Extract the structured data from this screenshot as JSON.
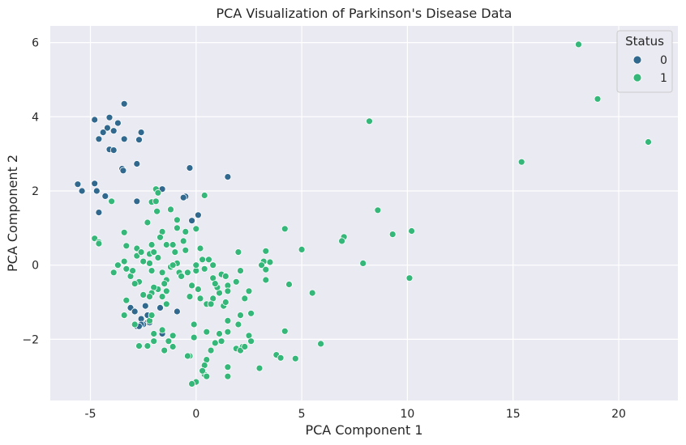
{
  "chart_data": {
    "type": "scatter",
    "title": "PCA Visualization of Parkinson's Disease Data",
    "xlabel": "PCA Component 1",
    "ylabel": "PCA Component 2",
    "xlim": [
      -6.9,
      22.8
    ],
    "ylim": [
      -3.65,
      6.45
    ],
    "xticks": [
      -5,
      0,
      5,
      10,
      15,
      20
    ],
    "yticks": [
      -2,
      0,
      2,
      4,
      6
    ],
    "ytick_labels": [
      "−2",
      "0",
      "2",
      "4",
      "6"
    ],
    "grid": true,
    "background": "#EAEAF2",
    "legend": {
      "title": "Status",
      "placement": "top-right"
    },
    "series": [
      {
        "name": "0",
        "color": "#30688E",
        "points": [
          [
            -3.4,
            4.35
          ],
          [
            -4.8,
            3.92
          ],
          [
            -4.1,
            3.98
          ],
          [
            -3.7,
            3.83
          ],
          [
            -3.9,
            3.62
          ],
          [
            -4.2,
            3.7
          ],
          [
            -4.4,
            3.58
          ],
          [
            -4.6,
            3.4
          ],
          [
            -2.6,
            3.58
          ],
          [
            -3.4,
            3.4
          ],
          [
            -2.7,
            3.38
          ],
          [
            -4.1,
            3.12
          ],
          [
            -3.9,
            3.1
          ],
          [
            -2.8,
            2.73
          ],
          [
            -3.5,
            2.6
          ],
          [
            -3.45,
            2.55
          ],
          [
            -0.3,
            2.62
          ],
          [
            1.5,
            2.38
          ],
          [
            -5.6,
            2.18
          ],
          [
            -4.8,
            2.2
          ],
          [
            -5.4,
            2.0
          ],
          [
            -4.7,
            2.0
          ],
          [
            -1.6,
            2.05
          ],
          [
            -4.3,
            1.86
          ],
          [
            -0.5,
            1.85
          ],
          [
            -0.6,
            1.82
          ],
          [
            -2.8,
            1.72
          ],
          [
            -4.6,
            1.42
          ],
          [
            -1.2,
            1.5
          ],
          [
            0.1,
            1.35
          ],
          [
            -0.2,
            1.2
          ],
          [
            -3.1,
            -1.15
          ],
          [
            -2.4,
            -1.1
          ],
          [
            -1.7,
            -1.15
          ],
          [
            -0.9,
            -1.25
          ],
          [
            -2.9,
            -1.25
          ],
          [
            -2.3,
            -1.35
          ],
          [
            -2.6,
            -1.45
          ],
          [
            -2.3,
            -1.55
          ],
          [
            -2.2,
            -1.55
          ],
          [
            -2.5,
            -1.6
          ],
          [
            -2.8,
            -1.65
          ],
          [
            -2.6,
            -1.6
          ],
          [
            -2.7,
            -1.65
          ],
          [
            -1.6,
            -1.85
          ]
        ]
      },
      {
        "name": "1",
        "color": "#35B779",
        "points": [
          [
            18.1,
            5.95
          ],
          [
            19.0,
            4.48
          ],
          [
            21.4,
            3.32
          ],
          [
            15.4,
            2.78
          ],
          [
            8.2,
            3.88
          ],
          [
            8.6,
            1.48
          ],
          [
            9.3,
            0.83
          ],
          [
            10.2,
            0.92
          ],
          [
            7.0,
            0.76
          ],
          [
            6.9,
            0.65
          ],
          [
            7.9,
            0.05
          ],
          [
            10.1,
            -0.35
          ],
          [
            4.2,
            0.98
          ],
          [
            5.0,
            0.42
          ],
          [
            3.3,
            0.38
          ],
          [
            3.2,
            0.1
          ],
          [
            3.5,
            0.08
          ],
          [
            3.1,
            0.0
          ],
          [
            3.3,
            -0.12
          ],
          [
            3.3,
            -0.4
          ],
          [
            4.4,
            -0.52
          ],
          [
            5.5,
            -0.75
          ],
          [
            4.2,
            -1.78
          ],
          [
            5.9,
            -2.12
          ],
          [
            4.7,
            -2.52
          ],
          [
            3.8,
            -2.42
          ],
          [
            4.0,
            -2.5
          ],
          [
            3.0,
            -2.78
          ],
          [
            2.6,
            -1.3
          ],
          [
            2.1,
            -1.35
          ],
          [
            2.5,
            -0.7
          ],
          [
            2.1,
            -0.15
          ],
          [
            2.0,
            0.35
          ],
          [
            1.9,
            -0.45
          ],
          [
            1.5,
            -0.55
          ],
          [
            1.5,
            -0.7
          ],
          [
            1.3,
            -1.1
          ],
          [
            1.5,
            -1.5
          ],
          [
            1.1,
            -1.85
          ],
          [
            1.5,
            -1.8
          ],
          [
            1.2,
            -2.05
          ],
          [
            0.9,
            -2.1
          ],
          [
            0.7,
            -2.3
          ],
          [
            1.5,
            -2.75
          ],
          [
            1.5,
            -3.0
          ],
          [
            0.5,
            -2.55
          ],
          [
            0.4,
            -2.7
          ],
          [
            0.4,
            -2.95
          ],
          [
            0.3,
            -2.85
          ],
          [
            0.5,
            -3.0
          ],
          [
            0.0,
            -3.15
          ],
          [
            -0.2,
            -3.2
          ],
          [
            -0.3,
            -2.45
          ],
          [
            -0.1,
            -1.95
          ],
          [
            0.5,
            -1.8
          ],
          [
            -0.1,
            -1.6
          ],
          [
            -0.3,
            -0.85
          ],
          [
            0.1,
            -0.65
          ],
          [
            -0.2,
            -0.55
          ],
          [
            -0.4,
            -0.2
          ],
          [
            0.0,
            -0.15
          ],
          [
            0.3,
            0.15
          ],
          [
            0.0,
            0.0
          ],
          [
            0.4,
            -0.1
          ],
          [
            -0.5,
            0.4
          ],
          [
            0.2,
            0.45
          ],
          [
            0.6,
            0.15
          ],
          [
            0.8,
            -0.35
          ],
          [
            1.1,
            -0.75
          ],
          [
            1.0,
            -0.6
          ],
          [
            0.8,
            -0.9
          ],
          [
            0.5,
            -1.05
          ],
          [
            0.7,
            -1.05
          ],
          [
            1.2,
            -0.25
          ],
          [
            0.8,
            0.0
          ],
          [
            0.0,
            0.98
          ],
          [
            0.4,
            1.88
          ],
          [
            -0.9,
            1.0
          ],
          [
            -0.9,
            1.22
          ],
          [
            -1.2,
            1.5
          ],
          [
            -1.6,
            0.9
          ],
          [
            -1.4,
            0.55
          ],
          [
            -1.1,
            0.55
          ],
          [
            -0.6,
            0.65
          ],
          [
            -0.5,
            0.9
          ],
          [
            -1.0,
            0.35
          ],
          [
            -0.9,
            0.05
          ],
          [
            -1.2,
            -0.05
          ],
          [
            -0.8,
            -0.2
          ],
          [
            -1.4,
            -0.4
          ],
          [
            -1.4,
            -0.7
          ],
          [
            -1.8,
            -0.65
          ],
          [
            -1.6,
            -0.85
          ],
          [
            -2.0,
            -0.6
          ],
          [
            -2.1,
            -0.75
          ],
          [
            -2.2,
            -0.85
          ],
          [
            -2.2,
            -1.5
          ],
          [
            -2.0,
            -1.85
          ],
          [
            -1.4,
            -1.05
          ],
          [
            -1.6,
            -1.75
          ],
          [
            -1.1,
            -1.9
          ],
          [
            -1.3,
            -2.05
          ],
          [
            -2.0,
            -2.05
          ],
          [
            -1.5,
            -2.3
          ],
          [
            -1.1,
            -2.2
          ],
          [
            -0.4,
            -2.45
          ],
          [
            -2.7,
            -2.18
          ],
          [
            -2.3,
            -2.18
          ],
          [
            -2.9,
            -1.6
          ],
          [
            -3.4,
            -1.35
          ],
          [
            -3.3,
            -0.95
          ],
          [
            -2.7,
            -0.45
          ],
          [
            -2.9,
            -0.5
          ],
          [
            -3.1,
            -0.3
          ],
          [
            -3.3,
            -0.1
          ],
          [
            -3.9,
            -0.2
          ],
          [
            -3.4,
            0.1
          ],
          [
            -3.7,
            0.0
          ],
          [
            -2.8,
            0.25
          ],
          [
            -2.8,
            0.45
          ],
          [
            -2.6,
            0.35
          ],
          [
            -2.5,
            0.1
          ],
          [
            -2.2,
            0.05
          ],
          [
            -2.2,
            0.3
          ],
          [
            -2.1,
            0.55
          ],
          [
            -2.0,
            0.35
          ],
          [
            -1.8,
            0.2
          ],
          [
            -2.1,
            -0.15
          ],
          [
            -1.6,
            -0.2
          ],
          [
            -3.3,
            0.52
          ],
          [
            -3.4,
            0.88
          ],
          [
            -2.3,
            1.15
          ],
          [
            -2.1,
            1.7
          ],
          [
            -1.9,
            1.72
          ],
          [
            -1.9,
            2.05
          ],
          [
            -1.8,
            1.95
          ],
          [
            -1.85,
            1.45
          ],
          [
            -1.7,
            0.75
          ],
          [
            -4.8,
            0.72
          ],
          [
            -4.6,
            0.62
          ],
          [
            -4.6,
            0.58
          ],
          [
            -4.0,
            1.72
          ],
          [
            -3.0,
            -0.15
          ],
          [
            -2.5,
            -0.8
          ],
          [
            -2.1,
            -1.35
          ],
          [
            -1.5,
            -0.5
          ],
          [
            -1.1,
            0.0
          ],
          [
            -0.7,
            -0.3
          ],
          [
            0.2,
            -0.9
          ],
          [
            0.9,
            -0.5
          ],
          [
            1.4,
            -1.0
          ],
          [
            2.0,
            -1.6
          ],
          [
            2.2,
            -2.2
          ],
          [
            2.5,
            -1.9
          ],
          [
            2.6,
            -2.05
          ],
          [
            1.9,
            -2.25
          ],
          [
            2.1,
            -2.3
          ],
          [
            2.3,
            -2.2
          ],
          [
            1.4,
            -0.3
          ],
          [
            2.3,
            -0.9
          ]
        ]
      }
    ]
  }
}
